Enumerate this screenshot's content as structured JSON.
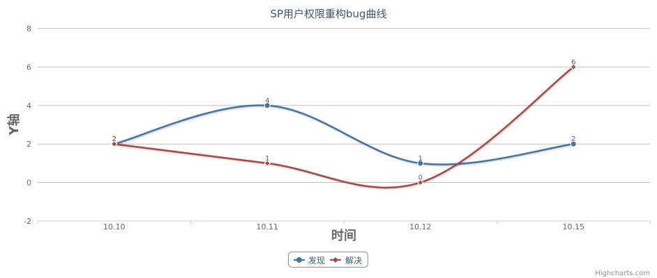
{
  "chart_data": {
    "type": "line",
    "title": "SP用户权限重构bug曲线",
    "xlabel": "时间",
    "ylabel": "Y轴",
    "categories": [
      "10.10",
      "10.11",
      "10.12",
      "10.15"
    ],
    "ylim": [
      -2,
      8
    ],
    "yticks": [
      -2,
      0,
      2,
      4,
      6,
      8
    ],
    "grid": true,
    "legend_position": "bottom-center",
    "series": [
      {
        "name": "发现",
        "values": [
          2,
          4,
          1,
          2
        ],
        "color": "#4572A7",
        "marker": "circle"
      },
      {
        "name": "解决",
        "values": [
          2,
          1,
          0,
          6
        ],
        "color": "#AA4643",
        "marker": "diamond"
      }
    ]
  },
  "credits": "Highcharts.com"
}
